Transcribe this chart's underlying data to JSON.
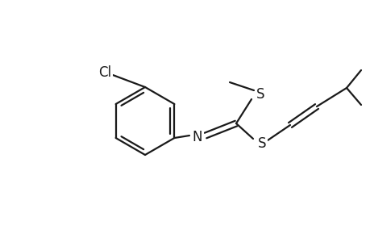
{
  "bg_color": "#ffffff",
  "line_color": "#1a1a1a",
  "line_width": 1.6,
  "figsize": [
    4.6,
    3.0
  ],
  "dpi": 100,
  "xlim": [
    0,
    460
  ],
  "ylim": [
    0,
    300
  ]
}
